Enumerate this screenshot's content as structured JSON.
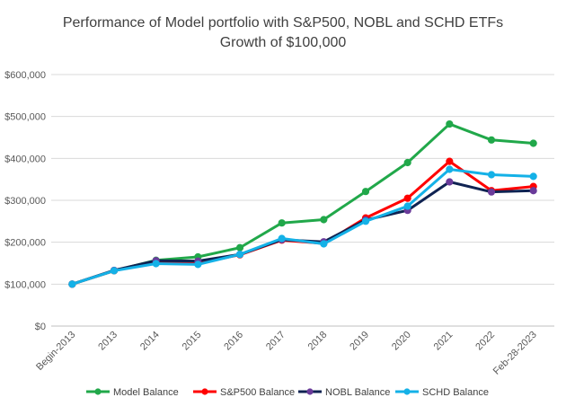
{
  "chart_data": {
    "type": "line",
    "title_line1": "Performance of Model portfolio with S&P500, NOBL and SCHD ETFs",
    "title_line2": "Growth of $100,000",
    "categories": [
      "Begin-2013",
      "2013",
      "2014",
      "2015",
      "2016",
      "2017",
      "2018",
      "2019",
      "2020",
      "2021",
      "2022",
      "Feb-28-2023"
    ],
    "ylim": [
      0,
      600000
    ],
    "yticks": [
      0,
      100000,
      200000,
      300000,
      400000,
      500000,
      600000
    ],
    "ytick_labels": [
      "$0",
      "$100,000",
      "$200,000",
      "$300,000",
      "$400,000",
      "$500,000",
      "$600,000"
    ],
    "grid": true,
    "legend_position": "bottom",
    "series": [
      {
        "name": "Model Balance",
        "color": "#21a84a",
        "values": [
          100000,
          132000,
          157000,
          165000,
          187000,
          246000,
          254000,
          321000,
          390000,
          482000,
          444000,
          436000
        ]
      },
      {
        "name": "S&P500 Balance",
        "color": "#ff0000",
        "values": [
          100000,
          132000,
          153000,
          150000,
          170000,
          205000,
          197000,
          258000,
          305000,
          393000,
          323000,
          333000
        ]
      },
      {
        "name": "NOBL Balance",
        "color": "#0f2352",
        "marker_color": "#6a3b9a",
        "values": [
          100000,
          133000,
          156000,
          155000,
          171000,
          206000,
          201000,
          253000,
          276000,
          344000,
          320000,
          323000
        ]
      },
      {
        "name": "SCHD Balance",
        "color": "#14b1e7",
        "values": [
          100000,
          132000,
          149000,
          147000,
          171000,
          209000,
          196000,
          250000,
          286000,
          374000,
          361000,
          357000
        ]
      }
    ]
  }
}
